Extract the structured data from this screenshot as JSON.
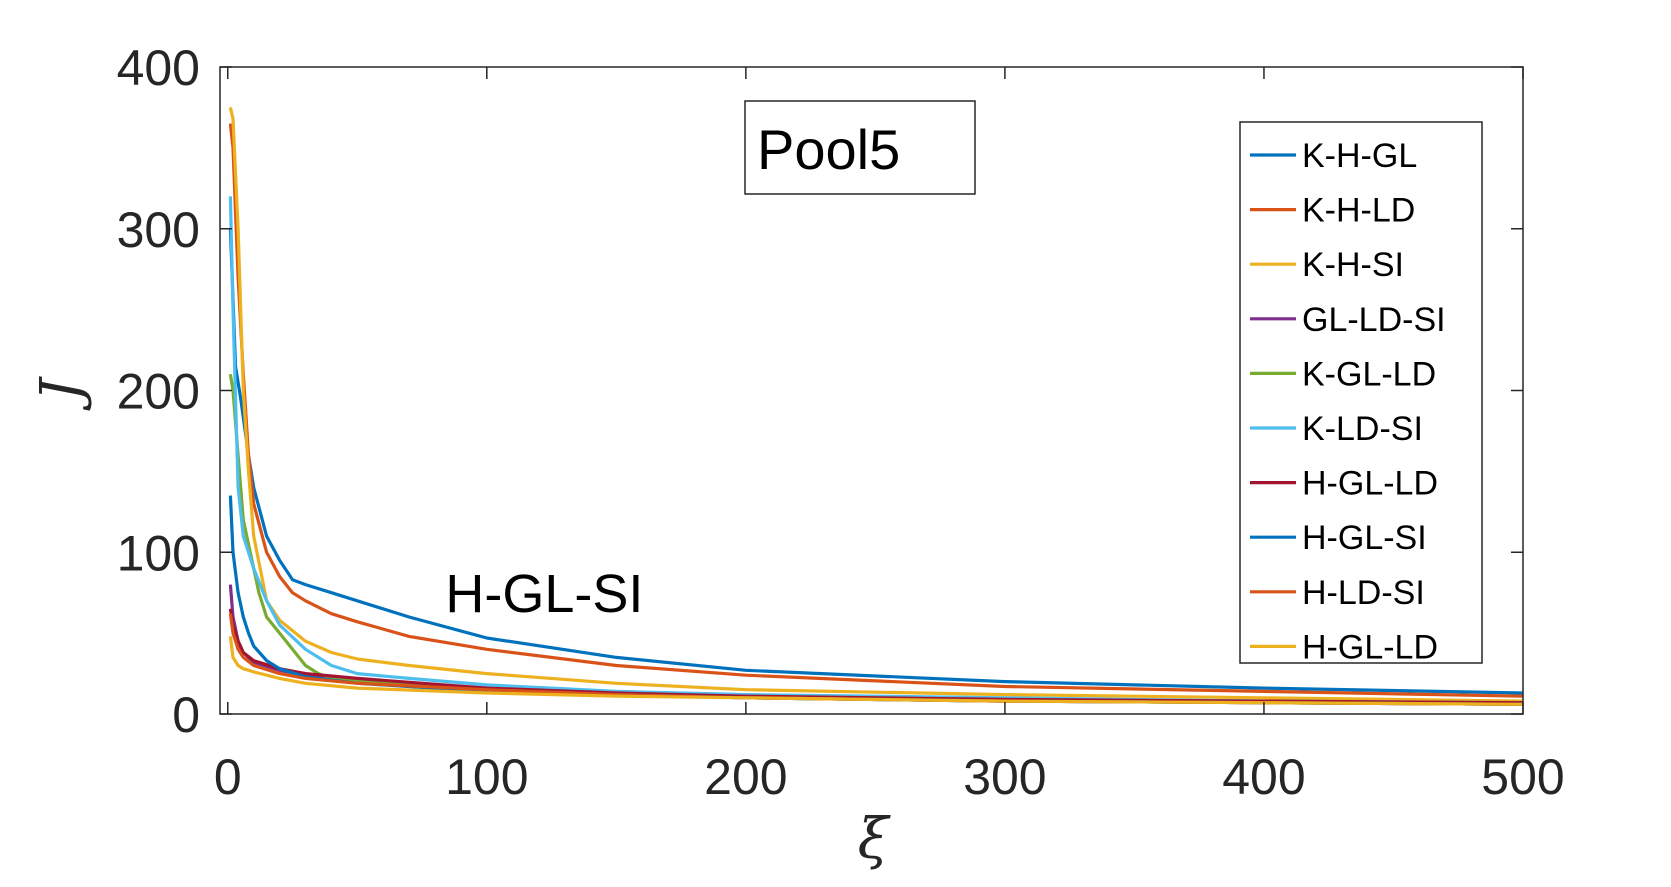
{
  "chart_data": {
    "type": "line",
    "title": "Pool5",
    "xlabel": "ξ",
    "ylabel": "J",
    "xlim": [
      -3,
      500
    ],
    "ylim": [
      0,
      400
    ],
    "xticks": [
      0,
      100,
      200,
      300,
      400,
      500
    ],
    "yticks": [
      0,
      100,
      200,
      300,
      400
    ],
    "grid": false,
    "legend_position": "top-right",
    "annotation": {
      "text": "H-GL-SI",
      "x": 84,
      "y": 63
    },
    "series": [
      {
        "name": "K-H-GL",
        "color": "#0072BD",
        "x": [
          1,
          3,
          5,
          8,
          10,
          15,
          20,
          25,
          30,
          40,
          50,
          70,
          100,
          150,
          200,
          300,
          400,
          500
        ],
        "y": [
          300,
          215,
          195,
          160,
          140,
          110,
          95,
          83,
          80,
          75,
          70,
          60,
          47,
          35,
          27,
          20,
          16,
          13
        ]
      },
      {
        "name": "K-H-LD",
        "color": "#D95319",
        "x": [
          1,
          2,
          4,
          6,
          8,
          10,
          15,
          20,
          25,
          30,
          40,
          50,
          70,
          100,
          150,
          200,
          300,
          400,
          500
        ],
        "y": [
          365,
          350,
          270,
          210,
          160,
          130,
          100,
          85,
          75,
          70,
          62,
          57,
          48,
          40,
          30,
          24,
          17,
          14,
          11
        ]
      },
      {
        "name": "K-H-SI",
        "color": "#EDB120",
        "x": [
          1,
          2,
          4,
          6,
          8,
          10,
          15,
          20,
          30,
          40,
          50,
          70,
          100,
          150,
          200,
          300,
          400,
          500
        ],
        "y": [
          375,
          368,
          300,
          200,
          150,
          110,
          70,
          58,
          45,
          38,
          34,
          30,
          25,
          19,
          15,
          12,
          10,
          8
        ]
      },
      {
        "name": "GL-LD-SI",
        "color": "#7E2F8E",
        "x": [
          1,
          2,
          4,
          6,
          10,
          20,
          30,
          50,
          100,
          150,
          200,
          300,
          400,
          500
        ],
        "y": [
          80,
          60,
          45,
          38,
          32,
          27,
          24,
          20,
          15,
          12,
          10,
          8,
          7,
          6
        ]
      },
      {
        "name": "K-GL-LD",
        "color": "#77AC30",
        "x": [
          1,
          2,
          4,
          6,
          8,
          10,
          12,
          15,
          20,
          25,
          30,
          35,
          40,
          50,
          100,
          150,
          200,
          300,
          400,
          500
        ],
        "y": [
          210,
          200,
          160,
          120,
          105,
          90,
          75,
          60,
          50,
          40,
          30,
          25,
          22,
          20,
          15,
          12,
          10,
          8,
          7,
          6
        ]
      },
      {
        "name": "K-LD-SI",
        "color": "#4DBEEE",
        "x": [
          1,
          2,
          4,
          6,
          8,
          10,
          15,
          20,
          30,
          40,
          50,
          70,
          100,
          150,
          200,
          300,
          400,
          500
        ],
        "y": [
          320,
          250,
          140,
          110,
          100,
          90,
          70,
          55,
          40,
          30,
          25,
          22,
          18,
          14,
          12,
          10,
          8,
          7
        ]
      },
      {
        "name": "H-GL-LD",
        "color": "#A2142F",
        "x": [
          1,
          2,
          4,
          6,
          10,
          20,
          30,
          50,
          100,
          150,
          200,
          300,
          400,
          500
        ],
        "y": [
          65,
          55,
          45,
          38,
          33,
          28,
          25,
          22,
          16,
          13,
          11,
          9,
          8,
          7
        ]
      },
      {
        "name": "H-GL-SI",
        "color": "#0072BD",
        "x": [
          1,
          2,
          4,
          6,
          8,
          10,
          15,
          20,
          30,
          50,
          100,
          150,
          200,
          300,
          400,
          500
        ],
        "y": [
          135,
          100,
          75,
          60,
          50,
          42,
          33,
          28,
          23,
          19,
          14,
          12,
          10,
          8,
          7,
          6
        ]
      },
      {
        "name": "H-LD-SI",
        "color": "#D95319",
        "x": [
          1,
          2,
          4,
          6,
          10,
          20,
          30,
          50,
          100,
          150,
          200,
          300,
          400,
          500
        ],
        "y": [
          62,
          50,
          40,
          35,
          30,
          25,
          22,
          19,
          15,
          12,
          10,
          8,
          7,
          6
        ]
      },
      {
        "name": "H-GL-LD",
        "color": "#EDB120",
        "x": [
          1,
          2,
          4,
          6,
          10,
          20,
          30,
          50,
          100,
          150,
          200,
          300,
          400,
          500
        ],
        "y": [
          48,
          35,
          30,
          28,
          26,
          22,
          19,
          16,
          13,
          11,
          10,
          8,
          7,
          6
        ]
      }
    ]
  }
}
